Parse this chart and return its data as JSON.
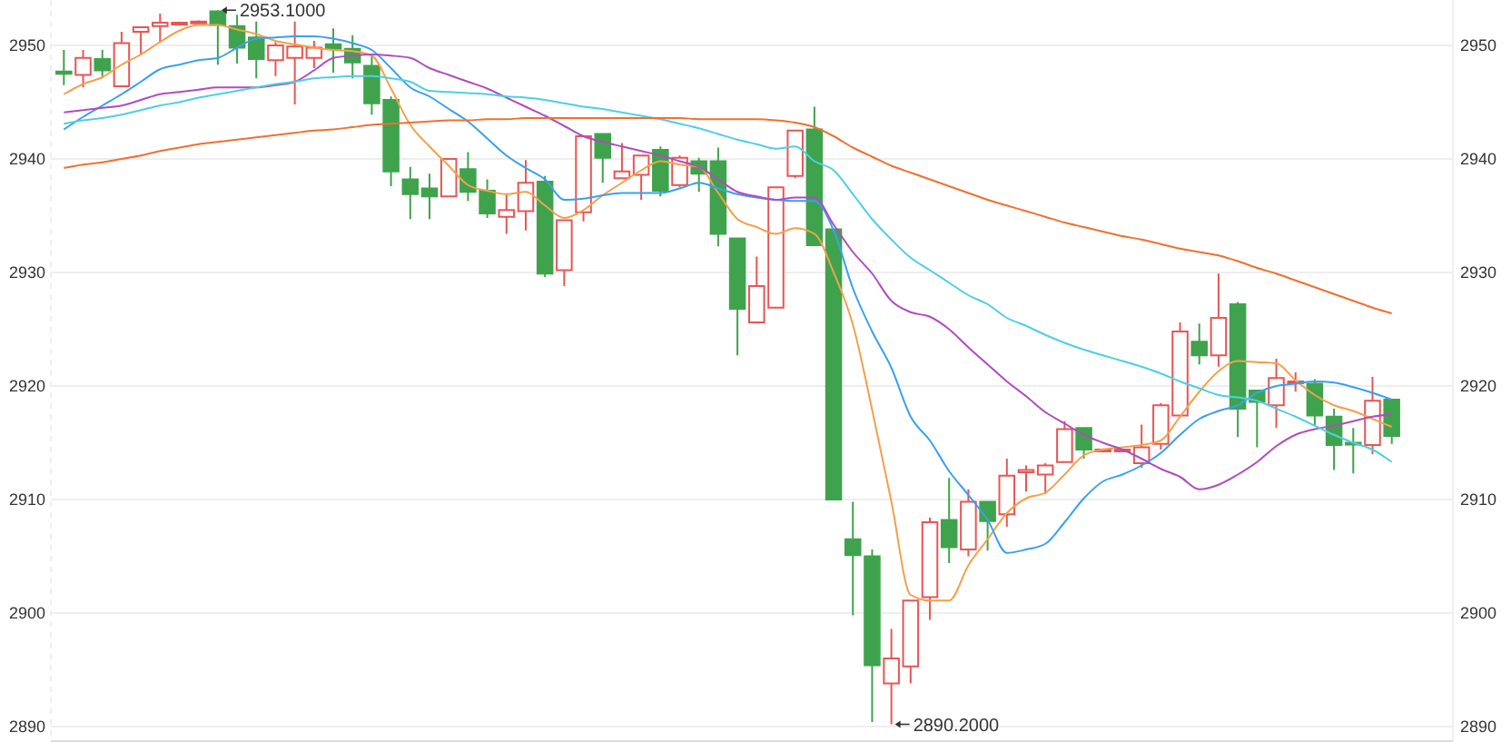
{
  "chart_data": {
    "type": "candlestick",
    "categories": [
      null,
      null,
      null,
      null,
      null,
      null,
      null,
      null,
      null,
      null,
      null,
      null,
      null,
      null,
      null,
      null,
      null,
      null,
      null,
      null,
      null,
      null,
      null,
      null,
      null,
      null,
      null,
      null,
      null,
      null,
      null,
      null,
      null,
      null,
      null,
      null,
      null,
      null,
      null,
      null,
      null,
      null,
      null,
      null,
      null,
      null,
      null,
      null,
      null,
      null,
      null,
      null,
      null,
      null,
      null,
      null,
      null,
      null,
      null,
      null,
      null,
      null,
      null,
      null,
      null,
      null,
      null,
      null,
      null,
      null
    ],
    "ohlc": [
      [
        2947.7,
        2949.6,
        2946.5,
        2947.5
      ],
      [
        2947.4,
        2949.6,
        2946.3,
        2948.9
      ],
      [
        2948.8,
        2949.6,
        2947.1,
        2947.8
      ],
      [
        2946.4,
        2951.2,
        2946.4,
        2950.2
      ],
      [
        2951.2,
        2951.6,
        2949.2,
        2951.6
      ],
      [
        2951.7,
        2952.8,
        2950.3,
        2952.0
      ],
      [
        2952.0,
        2952.1,
        2951.9,
        2952.0
      ],
      [
        2952.0,
        2952.2,
        2951.9,
        2952.1
      ],
      [
        2953.0,
        2953.1,
        2948.3,
        2951.8
      ],
      [
        2951.7,
        2952.7,
        2948.4,
        2949.8
      ],
      [
        2950.7,
        2952.1,
        2947.1,
        2948.8
      ],
      [
        2948.7,
        2950.3,
        2947.3,
        2950.0
      ],
      [
        2948.9,
        2952.1,
        2944.8,
        2949.9
      ],
      [
        2948.9,
        2950.4,
        2948.0,
        2949.8
      ],
      [
        2950.1,
        2951.5,
        2947.6,
        2949.7
      ],
      [
        2949.7,
        2950.9,
        2947.1,
        2948.5
      ],
      [
        2948.2,
        2949.2,
        2943.9,
        2944.9
      ],
      [
        2945.2,
        2945.5,
        2937.6,
        2938.9
      ],
      [
        2938.2,
        2939.3,
        2934.7,
        2936.9
      ],
      [
        2937.4,
        2938.7,
        2934.7,
        2936.7
      ],
      [
        2936.7,
        2940.0,
        2936.7,
        2940.0
      ],
      [
        2939.1,
        2940.6,
        2936.3,
        2937.1
      ],
      [
        2937.2,
        2938.2,
        2934.8,
        2935.2
      ],
      [
        2934.9,
        2936.9,
        2933.4,
        2935.5
      ],
      [
        2935.4,
        2939.9,
        2933.7,
        2937.9
      ],
      [
        2938.0,
        2938.5,
        2929.6,
        2929.9
      ],
      [
        2930.2,
        2934.6,
        2928.8,
        2934.6
      ],
      [
        2935.3,
        2942.0,
        2934.5,
        2942.0
      ],
      [
        2942.2,
        2942.2,
        2937.9,
        2940.1
      ],
      [
        2938.3,
        2941.4,
        2938.3,
        2938.9
      ],
      [
        2938.6,
        2940.3,
        2936.4,
        2940.3
      ],
      [
        2940.8,
        2941.1,
        2936.7,
        2937.2
      ],
      [
        2937.7,
        2940.3,
        2937.5,
        2940.1
      ],
      [
        2939.8,
        2940.1,
        2937.1,
        2938.7
      ],
      [
        2939.8,
        2941.0,
        2932.3,
        2933.4
      ],
      [
        2933.0,
        2933.0,
        2922.7,
        2926.8
      ],
      [
        2925.6,
        2931.4,
        2925.6,
        2928.8
      ],
      [
        2926.9,
        2937.5,
        2926.9,
        2937.5
      ],
      [
        2938.5,
        2942.5,
        2938.3,
        2942.5
      ],
      [
        2942.6,
        2944.6,
        2932.4,
        2932.4
      ],
      [
        2933.8,
        2933.8,
        2910.0,
        2910.0
      ],
      [
        2906.5,
        2909.8,
        2899.8,
        2905.1
      ],
      [
        2905.0,
        2905.6,
        2890.4,
        2895.4
      ],
      [
        2893.8,
        2898.6,
        2890.2,
        2896.0
      ],
      [
        2895.3,
        2901.1,
        2893.8,
        2901.1
      ],
      [
        2901.4,
        2908.4,
        2899.4,
        2908.0
      ],
      [
        2908.2,
        2911.9,
        2904.4,
        2905.8
      ],
      [
        2905.6,
        2910.9,
        2905.0,
        2909.8
      ],
      [
        2909.8,
        2909.8,
        2905.5,
        2908.1
      ],
      [
        2908.7,
        2913.6,
        2907.6,
        2912.1
      ],
      [
        2912.4,
        2913.0,
        2910.7,
        2912.6
      ],
      [
        2912.2,
        2913.2,
        2910.5,
        2913.0
      ],
      [
        2913.3,
        2916.9,
        2913.3,
        2916.2
      ],
      [
        2916.3,
        2916.3,
        2913.6,
        2914.4
      ],
      [
        2914.3,
        2914.5,
        2914.3,
        2914.4
      ],
      [
        2914.3,
        2914.5,
        2914.3,
        2914.4
      ],
      [
        2913.2,
        2916.6,
        2912.8,
        2914.6
      ],
      [
        2914.9,
        2918.5,
        2914.4,
        2918.3
      ],
      [
        2917.4,
        2925.6,
        2917.4,
        2924.8
      ],
      [
        2923.9,
        2925.5,
        2921.9,
        2922.7
      ],
      [
        2922.7,
        2929.9,
        2921.7,
        2926.0
      ],
      [
        2927.2,
        2927.4,
        2915.5,
        2918.0
      ],
      [
        2919.6,
        2919.6,
        2914.6,
        2918.6
      ],
      [
        2918.3,
        2922.4,
        2916.3,
        2920.7
      ],
      [
        2920.3,
        2921.2,
        2919.5,
        2920.4
      ],
      [
        2920.2,
        2920.6,
        2916.5,
        2917.4
      ],
      [
        2917.3,
        2918.0,
        2912.6,
        2914.8
      ],
      [
        2915.0,
        2916.3,
        2912.3,
        2914.9
      ],
      [
        2914.8,
        2920.8,
        2914.0,
        2918.7
      ],
      [
        2918.8,
        2918.8,
        2914.9,
        2915.6
      ]
    ],
    "series": [
      {
        "type": "line",
        "color": "#f5a04a",
        "values": [
          2945.7,
          2946.6,
          2947.2,
          2948.3,
          2949.2,
          2950.3,
          2951.3,
          2951.8,
          2951.8,
          2951.4,
          2951.0,
          2950.4,
          2950.1,
          2949.8,
          2949.6,
          2949.5,
          2949.1,
          2946.2,
          2943.0,
          2941.1,
          2939.4,
          2937.7,
          2937.2,
          2936.9,
          2937.1,
          2935.9,
          2934.8,
          2935.5,
          2936.8,
          2937.9,
          2939.0,
          2939.8,
          2939.5,
          2939.3,
          2937.0,
          2934.7,
          2934.0,
          2933.4,
          2933.9,
          2933.4,
          2930.0,
          2925.4,
          2917.9,
          2909.8,
          2901.6,
          2901.1,
          2901.1,
          2904.2,
          2906.5,
          2908.8,
          2910.1,
          2910.6,
          2912.2,
          2913.9,
          2914.4,
          2914.6,
          2914.8,
          2915.2,
          2917.3,
          2919.5,
          2921.3,
          2922.2,
          2922.1,
          2922.0,
          2920.5,
          2919.2,
          2918.3,
          2917.8,
          2917.1,
          2916.4
        ]
      },
      {
        "type": "line",
        "color": "#3aa0f0",
        "values": [
          2942.6,
          2943.7,
          2944.7,
          2945.7,
          2946.8,
          2947.9,
          2948.3,
          2948.7,
          2948.9,
          2949.8,
          2950.6,
          2950.7,
          2950.8,
          2950.8,
          2950.6,
          2950.2,
          2949.6,
          2948.0,
          2946.3,
          2945.5,
          2944.4,
          2943.3,
          2941.8,
          2940.3,
          2939.2,
          2938.2,
          2936.4,
          2936.5,
          2936.8,
          2937.0,
          2937.0,
          2937.0,
          2937.4,
          2937.9,
          2937.4,
          2936.9,
          2936.6,
          2936.4,
          2936.3,
          2936.3,
          2933.7,
          2928.6,
          2924.8,
          2921.6,
          2917.3,
          2915.2,
          2912.5,
          2910.4,
          2908.2,
          2905.3,
          2905.6,
          2906.1,
          2908.0,
          2910.1,
          2911.6,
          2912.2,
          2913.0,
          2914.1,
          2915.7,
          2917.1,
          2917.8,
          2918.3,
          2919.4,
          2920.0,
          2920.2,
          2920.4,
          2920.3,
          2919.9,
          2919.4,
          2918.8
        ]
      },
      {
        "type": "line",
        "color": "#b04cc0",
        "values": [
          2944.1,
          2944.3,
          2944.5,
          2944.7,
          2945.2,
          2945.7,
          2945.9,
          2946.1,
          2946.3,
          2946.3,
          2946.3,
          2946.5,
          2946.8,
          2947.8,
          2948.9,
          2949.1,
          2949.2,
          2949.1,
          2948.9,
          2948.0,
          2947.4,
          2946.8,
          2946.2,
          2945.4,
          2944.6,
          2943.8,
          2942.9,
          2942.0,
          2941.5,
          2941.1,
          2940.7,
          2940.3,
          2939.8,
          2939.3,
          2938.2,
          2937.1,
          2936.7,
          2936.4,
          2936.6,
          2936.6,
          2934.2,
          2931.8,
          2929.9,
          2927.5,
          2926.5,
          2926.1,
          2925.0,
          2923.4,
          2921.9,
          2920.4,
          2919.1,
          2917.7,
          2916.7,
          2915.7,
          2915.0,
          2914.4,
          2913.6,
          2912.7,
          2912.0,
          2910.9,
          2911.3,
          2912.2,
          2913.3,
          2914.7,
          2915.7,
          2916.2,
          2916.5,
          2916.9,
          2917.3,
          2917.5
        ]
      },
      {
        "type": "line",
        "color": "#4dd0e1",
        "values": [
          2943.1,
          2943.4,
          2943.6,
          2943.9,
          2944.3,
          2944.7,
          2945.0,
          2945.4,
          2945.7,
          2946.0,
          2946.3,
          2946.6,
          2946.8,
          2947.1,
          2947.2,
          2947.3,
          2947.3,
          2947.1,
          2946.8,
          2946.0,
          2945.9,
          2945.8,
          2945.7,
          2945.5,
          2945.4,
          2945.2,
          2944.9,
          2944.6,
          2944.4,
          2944.1,
          2943.8,
          2943.5,
          2943.1,
          2942.7,
          2942.2,
          2941.7,
          2941.3,
          2940.9,
          2941.1,
          2939.8,
          2939.0,
          2936.9,
          2934.7,
          2932.9,
          2931.3,
          2930.2,
          2929.1,
          2928.0,
          2927.2,
          2926.0,
          2925.3,
          2924.5,
          2923.8,
          2923.2,
          2922.7,
          2922.2,
          2921.7,
          2921.1,
          2920.4,
          2919.8,
          2919.2,
          2919.0,
          2918.7,
          2918.0,
          2917.3,
          2916.5,
          2915.7,
          2915.0,
          2914.4,
          2913.3
        ]
      },
      {
        "type": "line",
        "color": "#f07030",
        "values": [
          2939.2,
          2939.5,
          2939.7,
          2940.0,
          2940.3,
          2940.7,
          2941.0,
          2941.3,
          2941.5,
          2941.7,
          2941.9,
          2942.1,
          2942.3,
          2942.5,
          2942.6,
          2942.8,
          2943.0,
          2943.1,
          2943.2,
          2943.3,
          2943.4,
          2943.4,
          2943.5,
          2943.5,
          2943.6,
          2943.6,
          2943.6,
          2943.6,
          2943.6,
          2943.6,
          2943.6,
          2943.6,
          2943.6,
          2943.5,
          2943.5,
          2943.5,
          2943.5,
          2943.4,
          2943.2,
          2942.8,
          2942.0,
          2941.0,
          2940.2,
          2939.4,
          2938.8,
          2938.2,
          2937.6,
          2937.0,
          2936.4,
          2935.9,
          2935.4,
          2934.9,
          2934.4,
          2934.0,
          2933.6,
          2933.2,
          2932.9,
          2932.5,
          2932.1,
          2931.8,
          2931.5,
          2931.0,
          2930.4,
          2929.9,
          2929.3,
          2928.7,
          2928.1,
          2927.5,
          2926.9,
          2926.4
        ]
      }
    ],
    "ylim": [
      2890,
      2954
    ],
    "yticks": [
      2890,
      2900,
      2910,
      2920,
      2930,
      2940,
      2950
    ],
    "y2lim": [
      2890,
      2954
    ],
    "y2ticks": [
      2890,
      2900,
      2910,
      2920,
      2930,
      2940,
      2950
    ],
    "grid": "y",
    "annotations": [
      "2953.1000",
      "2890.2000"
    ]
  }
}
